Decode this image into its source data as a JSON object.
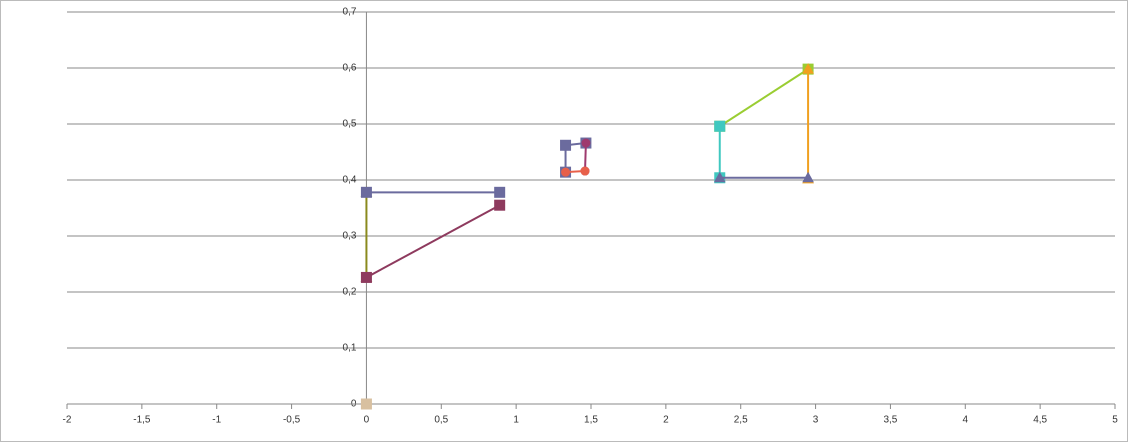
{
  "chart_data": {
    "type": "scatter",
    "xlim": [
      -2,
      5
    ],
    "xticks": [
      {
        "value": -2,
        "label": "-2"
      },
      {
        "value": -1.5,
        "label": "-1,5"
      },
      {
        "value": -1,
        "label": "-1"
      },
      {
        "value": -0.5,
        "label": "-0,5"
      },
      {
        "value": 0,
        "label": "0"
      },
      {
        "value": 0.5,
        "label": "0,5"
      },
      {
        "value": 1,
        "label": "1"
      },
      {
        "value": 1.5,
        "label": "1,5"
      },
      {
        "value": 2,
        "label": "2"
      },
      {
        "value": 2.5,
        "label": "2,5"
      },
      {
        "value": 3,
        "label": "3"
      },
      {
        "value": 3.5,
        "label": "3,5"
      },
      {
        "value": 4,
        "label": "4"
      },
      {
        "value": 4.5,
        "label": "4,5"
      },
      {
        "value": 5,
        "label": "5"
      }
    ],
    "ylim": [
      0,
      0.7
    ],
    "yticks": [
      {
        "value": 0,
        "label": "0"
      },
      {
        "value": 0.1,
        "label": "0,1"
      },
      {
        "value": 0.2,
        "label": "0,2"
      },
      {
        "value": 0.3,
        "label": "0,3"
      },
      {
        "value": 0.4,
        "label": "0,4"
      },
      {
        "value": 0.5,
        "label": "0,5"
      },
      {
        "value": 0.6,
        "label": "0,6"
      },
      {
        "value": 0.7,
        "label": "0,7"
      }
    ],
    "grid": true,
    "series": [
      {
        "color": "#8a8a1e",
        "marker": "triangle",
        "x": [
          0,
          0
        ],
        "values": [
          0.226,
          0.378
        ]
      },
      {
        "color": "#6b6b9e",
        "marker": "square",
        "x": [
          0,
          0.89
        ],
        "values": [
          0.378,
          0.378
        ]
      },
      {
        "color": "#8e3a5e",
        "marker": "square",
        "x": [
          0,
          0.89
        ],
        "values": [
          0.226,
          0.355
        ]
      },
      {
        "color": "#6b6b9e",
        "marker": "square",
        "x": [
          1.33,
          1.33,
          1.466
        ],
        "values": [
          0.414,
          0.462,
          0.466
        ]
      },
      {
        "color": "#9e3a6e",
        "marker": "circle",
        "x": [
          1.466,
          1.46
        ],
        "values": [
          0.466,
          0.416
        ]
      },
      {
        "color": "#e8604a",
        "marker": "circle",
        "x": [
          1.33,
          1.46
        ],
        "values": [
          0.414,
          0.416
        ]
      },
      {
        "color": "#9acd32",
        "marker": "square",
        "x": [
          2.36,
          2.95
        ],
        "values": [
          0.496,
          0.598
        ]
      },
      {
        "color": "#f0a020",
        "marker": "triangle",
        "x": [
          2.95,
          2.95
        ],
        "values": [
          0.598,
          0.402
        ]
      },
      {
        "color": "#40c8c0",
        "marker": "square",
        "x": [
          2.36,
          2.36
        ],
        "values": [
          0.496,
          0.404
        ]
      },
      {
        "color": "#6b6b9e",
        "marker": "triangle",
        "x": [
          2.36,
          2.95
        ],
        "values": [
          0.404,
          0.404
        ]
      },
      {
        "color": "#d8c0a0",
        "marker": "square",
        "x": [
          0
        ],
        "values": [
          0
        ]
      }
    ]
  }
}
